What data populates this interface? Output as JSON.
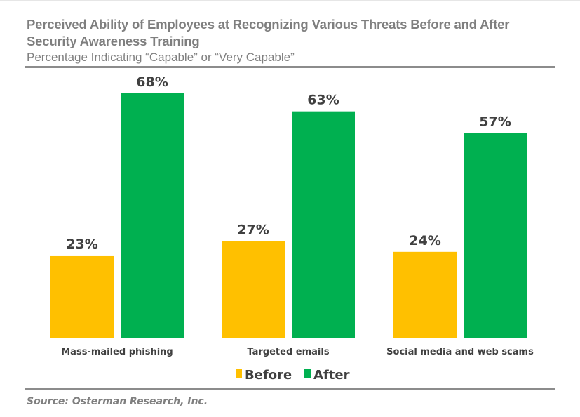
{
  "chart_data": {
    "type": "bar",
    "title": "Perceived Ability of Employees at Recognizing Various Threats Before and After Security Awareness Training",
    "subtitle": "Percentage Indicating “Capable” or “Very Capable”",
    "categories": [
      "Mass-mailed phishing",
      "Targeted emails",
      "Social media and web scams"
    ],
    "series": [
      {
        "name": "Before",
        "values": [
          23,
          27,
          24
        ],
        "labels": [
          "23%",
          "27%",
          "24%"
        ],
        "color": "#ffc000"
      },
      {
        "name": "After",
        "values": [
          68,
          63,
          57
        ],
        "labels": [
          "68%",
          "63%",
          "57%"
        ],
        "color": "#00b050"
      }
    ],
    "ylim": [
      0,
      68
    ],
    "grid": false,
    "legend": "bottom",
    "source": "Source: Osterman Research, Inc."
  }
}
